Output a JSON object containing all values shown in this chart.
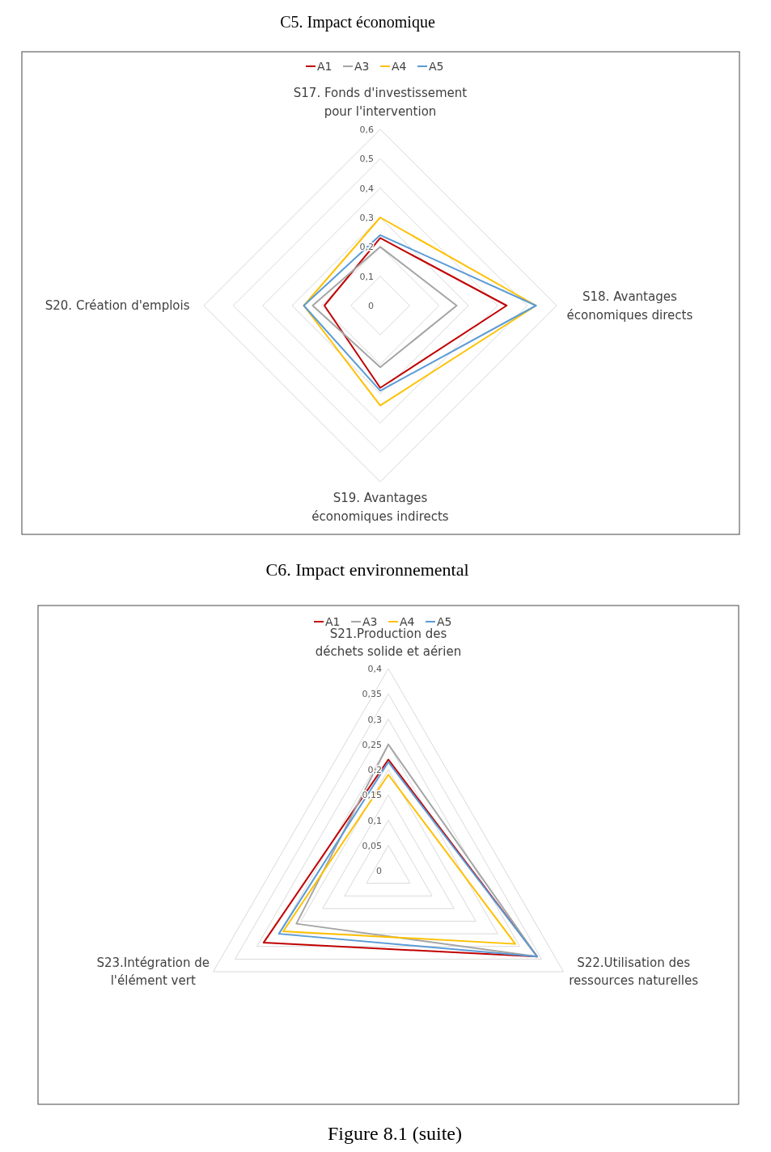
{
  "chart_data": [
    {
      "type": "radar",
      "title": "C5. Impact économique",
      "categories": [
        "S17. Fonds d'investissement\npour l'intervention",
        "S18. Avantages\néconomiques directs",
        "S19. Avantages\néconomiques indirects",
        "S20. Création d'emplois"
      ],
      "ylim": [
        0,
        0.6
      ],
      "yticks": [
        {
          "value": 0,
          "label": "0"
        },
        {
          "value": 0.1,
          "label": "0,1"
        },
        {
          "value": 0.2,
          "label": "0,2"
        },
        {
          "value": 0.3,
          "label": "0,3"
        },
        {
          "value": 0.4,
          "label": "0,4"
        },
        {
          "value": 0.5,
          "label": "0,5"
        },
        {
          "value": 0.6,
          "label": "0,6"
        }
      ],
      "grid": true,
      "legend": "top",
      "series": [
        {
          "name": "A1",
          "color": "#c00000",
          "values": [
            0.23,
            0.43,
            0.28,
            0.19
          ]
        },
        {
          "name": "A3",
          "color": "#a5a5a5",
          "values": [
            0.2,
            0.26,
            0.21,
            0.23
          ]
        },
        {
          "name": "A4",
          "color": "#ffc000",
          "values": [
            0.3,
            0.53,
            0.34,
            0.26
          ]
        },
        {
          "name": "A5",
          "color": "#5b9bd5",
          "values": [
            0.24,
            0.53,
            0.29,
            0.26
          ]
        }
      ]
    },
    {
      "type": "radar",
      "title": "C6. Impact environnemental",
      "categories": [
        "S21.Production des\ndéchets solide et aérien",
        "S22.Utilisation des\nressources naturelles",
        "S23.Intégration de\nl'élément vert"
      ],
      "ylim": [
        0,
        0.4
      ],
      "yticks": [
        {
          "value": 0,
          "label": "0"
        },
        {
          "value": 0.05,
          "label": "0,05"
        },
        {
          "value": 0.1,
          "label": "0,1"
        },
        {
          "value": 0.15,
          "label": "0,15"
        },
        {
          "value": 0.2,
          "label": "0,2"
        },
        {
          "value": 0.25,
          "label": "0,25"
        },
        {
          "value": 0.3,
          "label": "0,3"
        },
        {
          "value": 0.35,
          "label": "0,35"
        },
        {
          "value": 0.4,
          "label": "0,4"
        }
      ],
      "grid": true,
      "legend": "top",
      "annotations": [
        "Figure 8.1 (suite)"
      ],
      "series": [
        {
          "name": "A1",
          "color": "#c00000",
          "values": [
            0.22,
            0.34,
            0.285
          ]
        },
        {
          "name": "A3",
          "color": "#a5a5a5",
          "values": [
            0.25,
            0.34,
            0.21
          ]
        },
        {
          "name": "A4",
          "color": "#ffc000",
          "values": [
            0.19,
            0.29,
            0.24
          ]
        },
        {
          "name": "A5",
          "color": "#5b9bd5",
          "values": [
            0.215,
            0.34,
            0.25
          ]
        }
      ]
    }
  ]
}
